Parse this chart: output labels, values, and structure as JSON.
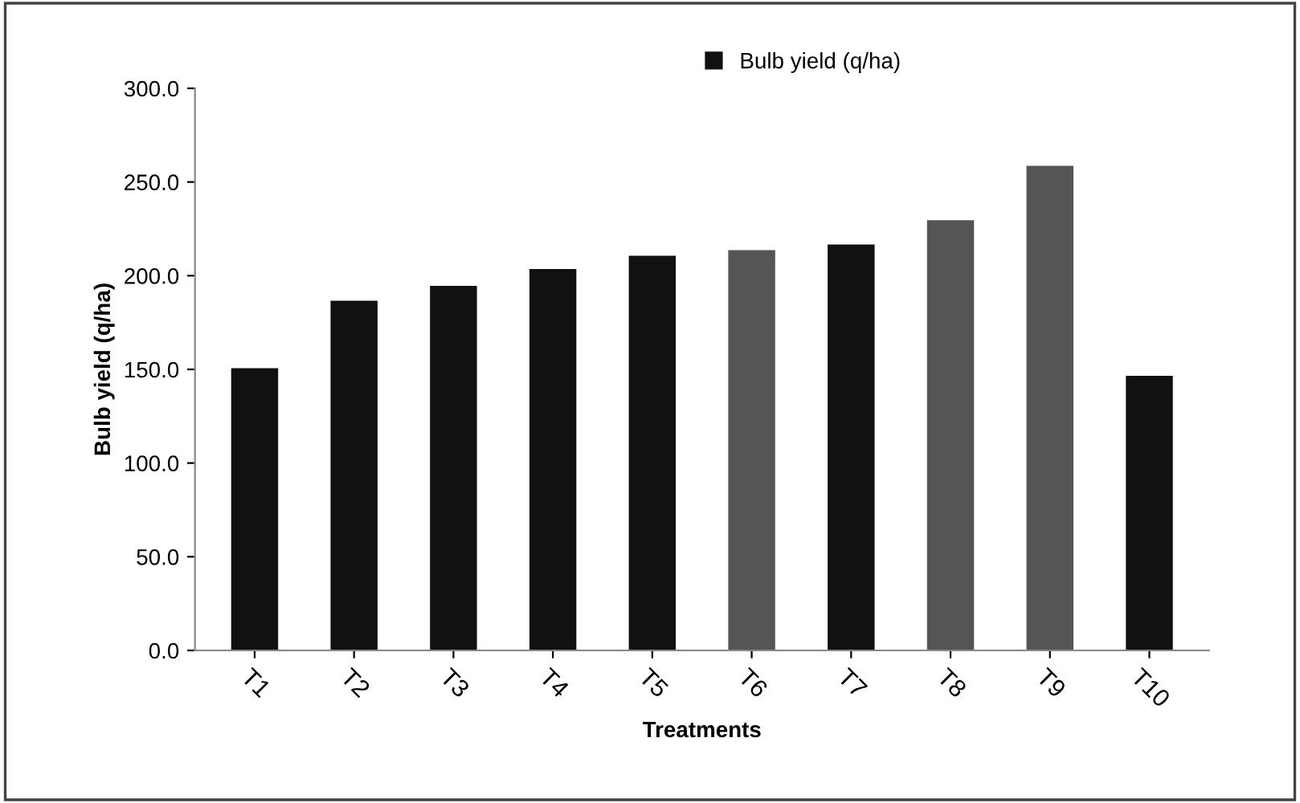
{
  "chart_data": {
    "type": "bar",
    "xlabel": "Treatments",
    "ylabel": "Bulb yield (q/ha)",
    "categories": [
      "T1",
      "T2",
      "T3",
      "T4",
      "T5",
      "T6",
      "T7",
      "T8",
      "T9",
      "T10"
    ],
    "series": [
      {
        "name": "Bulb yield (q/ha)",
        "color": "#111111",
        "colors": [
          "#111111",
          "#111111",
          "#111111",
          "#111111",
          "#111111",
          "#555555",
          "#111111",
          "#555555",
          "#555555",
          "#111111"
        ],
        "values": [
          150,
          186,
          194,
          203,
          210,
          213,
          216,
          229,
          258,
          146
        ]
      }
    ],
    "ylim": [
      0,
      300
    ],
    "yticks": [
      {
        "value": 0,
        "label": "0.0"
      },
      {
        "value": 50,
        "label": "50.0"
      },
      {
        "value": 100,
        "label": "100.0"
      },
      {
        "value": 150,
        "label": "150.0"
      },
      {
        "value": 200,
        "label": "200.0"
      },
      {
        "value": 250,
        "label": "250.0"
      },
      {
        "value": 300,
        "label": "300.0"
      }
    ],
    "grid": false,
    "legend": "top"
  }
}
